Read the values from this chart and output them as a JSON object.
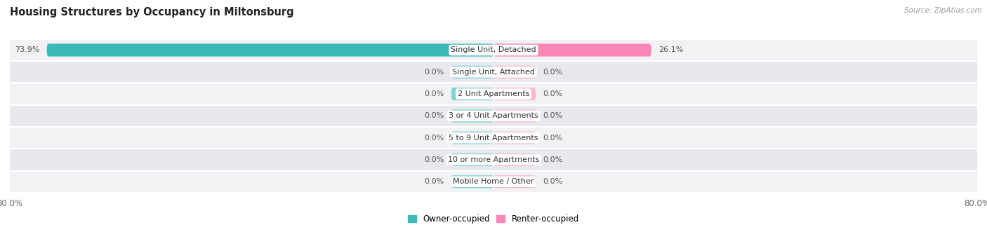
{
  "title": "Housing Structures by Occupancy in Miltonsburg",
  "source": "Source: ZipAtlas.com",
  "categories": [
    "Single Unit, Detached",
    "Single Unit, Attached",
    "2 Unit Apartments",
    "3 or 4 Unit Apartments",
    "5 to 9 Unit Apartments",
    "10 or more Apartments",
    "Mobile Home / Other"
  ],
  "owner_values": [
    73.9,
    0.0,
    0.0,
    0.0,
    0.0,
    0.0,
    0.0
  ],
  "renter_values": [
    26.1,
    0.0,
    0.0,
    0.0,
    0.0,
    0.0,
    0.0
  ],
  "owner_color": "#3cb8b8",
  "renter_color": "#f987b5",
  "owner_stub_color": "#7dd4d4",
  "renter_stub_color": "#f9b8d0",
  "axis_max": 80.0,
  "stub_size": 7.0,
  "label_fontsize": 8.0,
  "value_fontsize": 8.0,
  "title_fontsize": 10.5,
  "bar_height": 0.58,
  "row_colors": [
    "#f2f2f5",
    "#e8e8ee"
  ],
  "legend_owner": "Owner-occupied",
  "legend_renter": "Renter-occupied"
}
